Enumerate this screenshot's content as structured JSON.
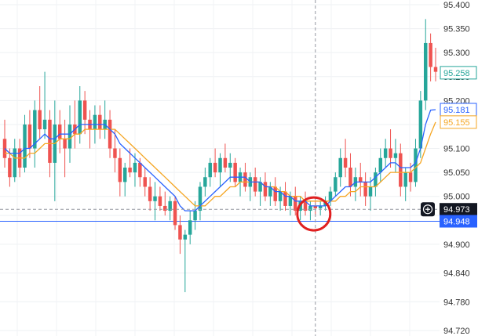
{
  "chart_data": {
    "type": "candlestick",
    "ylim": [
      94.72,
      95.4
    ],
    "y_axis_side": "right",
    "y_ticks": [
      "95.400",
      "95.350",
      "95.300",
      "95.250",
      "95.200",
      "95.150",
      "95.100",
      "95.050",
      "95.000",
      "94.960",
      "94.900",
      "94.840",
      "94.780",
      "94.720"
    ],
    "price_badges": [
      {
        "label": "95.258",
        "value": 95.258,
        "style": "outline",
        "color": "#26a69a"
      },
      {
        "label": "95.181",
        "value": 95.181,
        "style": "outline",
        "color": "#2962ff"
      },
      {
        "label": "95.155",
        "value": 95.155,
        "style": "outline",
        "color": "#f5a623"
      },
      {
        "label": "94.973",
        "value": 94.973,
        "style": "filled",
        "color": "#131722"
      },
      {
        "label": "94.948",
        "value": 94.948,
        "style": "filled",
        "color": "#2962ff"
      }
    ],
    "crosshair": {
      "price": 94.973,
      "candle_index": 62
    },
    "horizontal_line": {
      "price": 94.948,
      "color": "#2962ff"
    },
    "highlight_circle": {
      "candle_index": 62,
      "price": 94.965,
      "color": "#e02020"
    },
    "colors": {
      "up": "#26a69a",
      "down": "#ef5350",
      "ma_fast": "#2962ff",
      "ma_slow": "#f5a623"
    },
    "candles": [
      [
        95.12,
        95.16,
        95.06,
        95.08
      ],
      [
        95.08,
        95.1,
        95.02,
        95.04
      ],
      [
        95.04,
        95.12,
        95.03,
        95.1
      ],
      [
        95.1,
        95.12,
        95.04,
        95.06
      ],
      [
        95.06,
        95.17,
        95.05,
        95.15
      ],
      [
        95.15,
        95.18,
        95.08,
        95.1
      ],
      [
        95.1,
        95.2,
        95.06,
        95.18
      ],
      [
        95.18,
        95.23,
        95.12,
        95.14
      ],
      [
        95.14,
        95.26,
        95.12,
        95.16
      ],
      [
        95.16,
        95.18,
        95.04,
        95.07
      ],
      [
        95.07,
        95.2,
        94.99,
        95.15
      ],
      [
        95.15,
        95.18,
        95.09,
        95.12
      ],
      [
        95.12,
        95.16,
        95.04,
        95.1
      ],
      [
        95.1,
        95.19,
        95.07,
        95.15
      ],
      [
        95.15,
        95.2,
        95.1,
        95.13
      ],
      [
        95.13,
        95.23,
        95.11,
        95.2
      ],
      [
        95.2,
        95.22,
        95.13,
        95.16
      ],
      [
        95.16,
        95.18,
        95.1,
        95.14
      ],
      [
        95.14,
        95.19,
        95.11,
        95.17
      ],
      [
        95.17,
        95.19,
        95.12,
        95.14
      ],
      [
        95.14,
        95.2,
        95.12,
        95.16
      ],
      [
        95.16,
        95.18,
        95.08,
        95.1
      ],
      [
        95.1,
        95.14,
        95.05,
        95.08
      ],
      [
        95.08,
        95.1,
        95.0,
        95.03
      ],
      [
        95.03,
        95.07,
        95.0,
        95.06
      ],
      [
        95.06,
        95.1,
        95.04,
        95.05
      ],
      [
        95.05,
        95.09,
        95.02,
        95.07
      ],
      [
        95.07,
        95.08,
        95.02,
        95.04
      ],
      [
        95.04,
        95.06,
        95.0,
        95.02
      ],
      [
        95.02,
        95.04,
        94.97,
        94.99
      ],
      [
        94.99,
        95.03,
        94.95,
        95.0
      ],
      [
        95.0,
        95.02,
        94.97,
        94.98
      ],
      [
        94.98,
        95.01,
        94.96,
        94.97
      ],
      [
        94.97,
        95.0,
        94.95,
        94.99
      ],
      [
        94.99,
        95.0,
        94.93,
        94.94
      ],
      [
        94.94,
        94.96,
        94.88,
        94.91
      ],
      [
        94.91,
        94.93,
        94.8,
        94.92
      ],
      [
        94.92,
        94.97,
        94.9,
        94.95
      ],
      [
        94.95,
        94.99,
        94.93,
        94.97
      ],
      [
        94.97,
        95.03,
        94.95,
        95.02
      ],
      [
        95.02,
        95.06,
        95.0,
        95.04
      ],
      [
        95.04,
        95.08,
        95.02,
        95.07
      ],
      [
        95.07,
        95.1,
        95.04,
        95.05
      ],
      [
        95.05,
        95.09,
        95.02,
        95.08
      ],
      [
        95.08,
        95.11,
        95.05,
        95.06
      ],
      [
        95.06,
        95.09,
        95.03,
        95.07
      ],
      [
        95.07,
        95.08,
        95.02,
        95.03
      ],
      [
        95.03,
        95.06,
        95.0,
        95.05
      ],
      [
        95.05,
        95.07,
        95.01,
        95.02
      ],
      [
        95.02,
        95.05,
        94.99,
        95.04
      ],
      [
        95.04,
        95.06,
        95.0,
        95.01
      ],
      [
        95.01,
        95.04,
        94.98,
        95.03
      ],
      [
        95.03,
        95.05,
        94.99,
        95.0
      ],
      [
        95.0,
        95.03,
        94.98,
        95.02
      ],
      [
        95.02,
        95.04,
        94.98,
        94.99
      ],
      [
        94.99,
        95.02,
        94.97,
        95.01
      ],
      [
        95.01,
        95.03,
        94.97,
        94.98
      ],
      [
        94.98,
        95.01,
        94.96,
        95.0
      ],
      [
        95.0,
        95.02,
        94.96,
        94.97
      ],
      [
        94.97,
        95.0,
        94.95,
        94.99
      ],
      [
        94.99,
        95.01,
        94.96,
        94.97
      ],
      [
        94.97,
        94.99,
        94.95,
        94.98
      ],
      [
        94.98,
        94.99,
        94.96,
        94.975
      ],
      [
        94.975,
        94.99,
        94.96,
        94.98
      ],
      [
        94.98,
        95.0,
        94.97,
        94.99
      ],
      [
        94.99,
        95.02,
        94.98,
        95.01
      ],
      [
        95.01,
        95.05,
        95.0,
        95.04
      ],
      [
        95.04,
        95.1,
        95.02,
        95.08
      ],
      [
        95.08,
        95.12,
        95.04,
        95.06
      ],
      [
        95.06,
        95.09,
        95.0,
        95.02
      ],
      [
        95.02,
        95.06,
        94.99,
        95.04
      ],
      [
        95.04,
        95.07,
        95.0,
        95.03
      ],
      [
        95.03,
        95.05,
        94.98,
        95.0
      ],
      [
        95.0,
        95.04,
        94.97,
        95.02
      ],
      [
        95.02,
        95.06,
        95.0,
        95.05
      ],
      [
        95.05,
        95.1,
        95.03,
        95.08
      ],
      [
        95.08,
        95.12,
        95.06,
        95.1
      ],
      [
        95.1,
        95.14,
        95.06,
        95.08
      ],
      [
        95.08,
        95.12,
        95.05,
        95.09
      ],
      [
        95.09,
        95.11,
        95.0,
        95.02
      ],
      [
        95.02,
        95.06,
        94.99,
        95.05
      ],
      [
        95.05,
        95.07,
        95.01,
        95.03
      ],
      [
        95.03,
        95.12,
        95.02,
        95.1
      ],
      [
        95.1,
        95.22,
        95.08,
        95.2
      ],
      [
        95.2,
        95.37,
        95.18,
        95.32
      ],
      [
        95.32,
        95.34,
        95.24,
        95.27
      ],
      [
        95.27,
        95.31,
        95.24,
        95.26
      ]
    ],
    "ma_fast": [
      95.1,
      95.09,
      95.09,
      95.09,
      95.1,
      95.1,
      95.11,
      95.12,
      95.13,
      95.12,
      95.12,
      95.13,
      95.13,
      95.13,
      95.14,
      95.15,
      95.15,
      95.15,
      95.15,
      95.15,
      95.15,
      95.14,
      95.13,
      95.11,
      95.1,
      95.09,
      95.08,
      95.07,
      95.06,
      95.05,
      95.04,
      95.03,
      95.02,
      95.01,
      95.0,
      94.98,
      94.97,
      94.97,
      94.97,
      94.98,
      94.99,
      95.0,
      95.01,
      95.02,
      95.03,
      95.04,
      95.04,
      95.04,
      95.04,
      95.03,
      95.03,
      95.03,
      95.02,
      95.02,
      95.01,
      95.01,
      95.0,
      95.0,
      94.99,
      94.99,
      94.99,
      94.98,
      94.98,
      94.98,
      94.98,
      94.99,
      95.0,
      95.01,
      95.02,
      95.02,
      95.03,
      95.03,
      95.03,
      95.03,
      95.04,
      95.05,
      95.06,
      95.07,
      95.07,
      95.06,
      95.06,
      95.06,
      95.07,
      95.1,
      95.15,
      95.18,
      95.181
    ],
    "ma_slow": [
      95.09,
      95.09,
      95.08,
      95.08,
      95.08,
      95.09,
      95.09,
      95.1,
      95.11,
      95.11,
      95.11,
      95.12,
      95.12,
      95.12,
      95.13,
      95.13,
      95.14,
      95.14,
      95.14,
      95.14,
      95.14,
      95.14,
      95.14,
      95.13,
      95.12,
      95.11,
      95.1,
      95.09,
      95.08,
      95.07,
      95.06,
      95.05,
      95.04,
      95.03,
      95.02,
      95.01,
      95.0,
      94.99,
      94.98,
      94.98,
      94.98,
      94.99,
      95.0,
      95.0,
      95.01,
      95.02,
      95.02,
      95.03,
      95.03,
      95.03,
      95.03,
      95.03,
      95.02,
      95.02,
      95.02,
      95.01,
      95.01,
      95.0,
      95.0,
      95.0,
      94.99,
      94.99,
      94.99,
      94.99,
      94.99,
      94.99,
      94.99,
      95.0,
      95.0,
      95.01,
      95.01,
      95.02,
      95.02,
      95.02,
      95.02,
      95.03,
      95.04,
      95.05,
      95.05,
      95.05,
      95.05,
      95.05,
      95.06,
      95.07,
      95.1,
      95.13,
      95.155
    ]
  }
}
